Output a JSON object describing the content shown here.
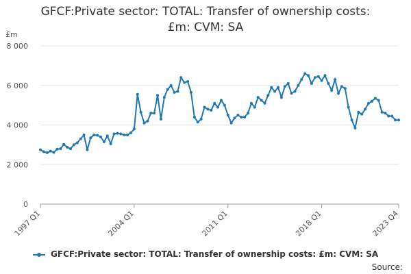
{
  "chart_data": {
    "type": "line",
    "title": [
      "GFCF:Private sector: TOTAL: Transfer of ownership costs:",
      "£m: CVM: SA"
    ],
    "unit": "£m",
    "ylim": [
      0,
      8000
    ],
    "y_ticks": [
      0,
      2000,
      4000,
      6000,
      8000
    ],
    "y_tick_labels": [
      "0",
      "2 000",
      "4 000",
      "6 000",
      "8 000"
    ],
    "x_tick_labels": [
      "1997 Q1",
      "2004 Q1",
      "2011 Q1",
      "2018 Q1",
      "2023 Q4"
    ],
    "grid": true,
    "legend_position": "bottom",
    "series": [
      {
        "name": "GFCF:Private sector: TOTAL: Transfer of ownership costs: £m: CVM: SA",
        "color": "#1f77b4",
        "x": [
          "1997 Q1",
          "1997 Q2",
          "1997 Q3",
          "1997 Q4",
          "1998 Q1",
          "1998 Q2",
          "1998 Q3",
          "1998 Q4",
          "1999 Q1",
          "1999 Q2",
          "1999 Q3",
          "1999 Q4",
          "2000 Q1",
          "2000 Q2",
          "2000 Q3",
          "2000 Q4",
          "2001 Q1",
          "2001 Q2",
          "2001 Q3",
          "2001 Q4",
          "2002 Q1",
          "2002 Q2",
          "2002 Q3",
          "2002 Q4",
          "2003 Q1",
          "2003 Q2",
          "2003 Q3",
          "2003 Q4",
          "2004 Q1",
          "2004 Q2",
          "2004 Q3",
          "2004 Q4",
          "2005 Q1",
          "2005 Q2",
          "2005 Q3",
          "2005 Q4",
          "2006 Q1",
          "2006 Q2",
          "2006 Q3",
          "2006 Q4",
          "2007 Q1",
          "2007 Q2",
          "2007 Q3",
          "2007 Q4",
          "2008 Q1",
          "2008 Q2",
          "2008 Q3",
          "2008 Q4",
          "2009 Q1",
          "2009 Q2",
          "2009 Q3",
          "2009 Q4",
          "2010 Q1",
          "2010 Q2",
          "2010 Q3",
          "2010 Q4",
          "2011 Q1",
          "2011 Q2",
          "2011 Q3",
          "2011 Q4",
          "2012 Q1",
          "2012 Q2",
          "2012 Q3",
          "2012 Q4",
          "2013 Q1",
          "2013 Q2",
          "2013 Q3",
          "2013 Q4",
          "2014 Q1",
          "2014 Q2",
          "2014 Q3",
          "2014 Q4",
          "2015 Q1",
          "2015 Q2",
          "2015 Q3",
          "2015 Q4",
          "2016 Q1",
          "2016 Q2",
          "2016 Q3",
          "2016 Q4",
          "2017 Q1",
          "2017 Q2",
          "2017 Q3",
          "2017 Q4",
          "2018 Q1",
          "2018 Q2",
          "2018 Q3",
          "2018 Q4",
          "2019 Q1",
          "2019 Q2",
          "2019 Q3",
          "2019 Q4",
          "2020 Q1",
          "2020 Q2",
          "2020 Q3",
          "2020 Q4",
          "2021 Q1",
          "2021 Q2",
          "2021 Q3",
          "2021 Q4",
          "2022 Q1",
          "2022 Q2",
          "2022 Q3",
          "2022 Q4",
          "2023 Q1",
          "2023 Q2",
          "2023 Q3",
          "2023 Q4"
        ],
        "values": [
          2750,
          2650,
          2600,
          2680,
          2620,
          2780,
          2800,
          3020,
          2880,
          2800,
          3000,
          3100,
          3300,
          3500,
          2750,
          3350,
          3500,
          3480,
          3400,
          3150,
          3450,
          3050,
          3550,
          3580,
          3550,
          3500,
          3500,
          3600,
          3800,
          5550,
          4650,
          4100,
          4200,
          4600,
          4600,
          5500,
          4300,
          5400,
          5800,
          6000,
          5650,
          5700,
          6400,
          6150,
          6200,
          5650,
          4400,
          4150,
          4300,
          4900,
          4800,
          4750,
          5100,
          4900,
          5250,
          5000,
          4500,
          4100,
          4350,
          4500,
          4400,
          4400,
          4600,
          5100,
          4900,
          5400,
          5250,
          5100,
          5500,
          5900,
          5700,
          5900,
          5400,
          5950,
          6100,
          5600,
          5700,
          6000,
          6300,
          6600,
          6500,
          6100,
          6400,
          6450,
          6250,
          6500,
          6100,
          5750,
          6300,
          5600,
          5950,
          5850,
          4900,
          4250,
          3850,
          4650,
          4550,
          4800,
          5100,
          5200,
          5350,
          5250,
          4650,
          4600,
          4450,
          4450,
          4250,
          4250
        ]
      }
    ]
  },
  "legend": {
    "label": "GFCF:Private sector: TOTAL: Transfer of ownership costs: £m: CVM: SA"
  },
  "source_label": "Source:"
}
